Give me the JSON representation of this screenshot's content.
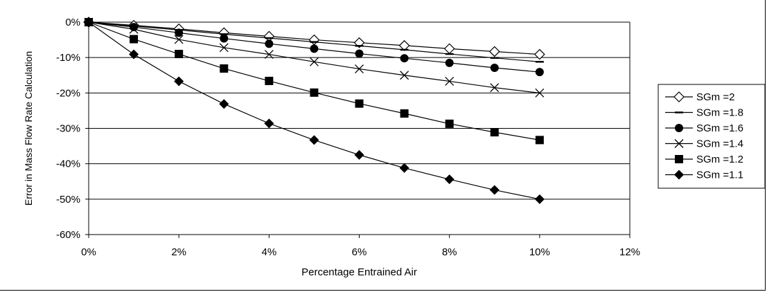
{
  "chart_data": {
    "type": "line",
    "title": "",
    "xlabel": "Percentage Entrained Air",
    "ylabel": "Error in Mass Flow Rate Calculation",
    "xlim": [
      0,
      12
    ],
    "ylim": [
      -60,
      0
    ],
    "x_ticks": [
      "0%",
      "2%",
      "4%",
      "6%",
      "8%",
      "10%",
      "12%"
    ],
    "y_ticks": [
      "0%",
      "-10%",
      "-20%",
      "-30%",
      "-40%",
      "-50%",
      "-60%"
    ],
    "grid": "horizontal",
    "legend_position": "right",
    "x": [
      0,
      1,
      2,
      3,
      4,
      5,
      6,
      7,
      8,
      9,
      10
    ],
    "series": [
      {
        "name": "SGm =2",
        "marker": "diamond-open",
        "values": [
          0,
          -0.9,
          -1.9,
          -3.0,
          -4.0,
          -5.0,
          -5.8,
          -6.6,
          -7.5,
          -8.3,
          -9.1
        ]
      },
      {
        "name": "SGm =1.8",
        "marker": "dash",
        "values": [
          0,
          -1.1,
          -2.2,
          -3.4,
          -4.5,
          -5.6,
          -6.7,
          -7.8,
          -9.0,
          -10.1,
          -11.2
        ]
      },
      {
        "name": "SGm =1.6",
        "marker": "circle",
        "values": [
          0,
          -1.4,
          -3.0,
          -4.6,
          -6.1,
          -7.5,
          -8.9,
          -10.2,
          -11.5,
          -12.9,
          -14.1
        ]
      },
      {
        "name": "SGm =1.4",
        "marker": "x",
        "values": [
          0,
          -2.0,
          -4.9,
          -7.2,
          -9.1,
          -11.2,
          -13.2,
          -15.0,
          -16.7,
          -18.5,
          -20.0
        ]
      },
      {
        "name": "SGm =1.2",
        "marker": "square",
        "values": [
          0,
          -4.8,
          -9.0,
          -13.1,
          -16.6,
          -19.9,
          -23.0,
          -25.8,
          -28.7,
          -31.1,
          -33.3
        ]
      },
      {
        "name": "SGm =1.1",
        "marker": "diamond",
        "values": [
          0,
          -9.1,
          -16.7,
          -23.1,
          -28.6,
          -33.3,
          -37.5,
          -41.2,
          -44.4,
          -47.4,
          -50.0
        ]
      }
    ]
  }
}
